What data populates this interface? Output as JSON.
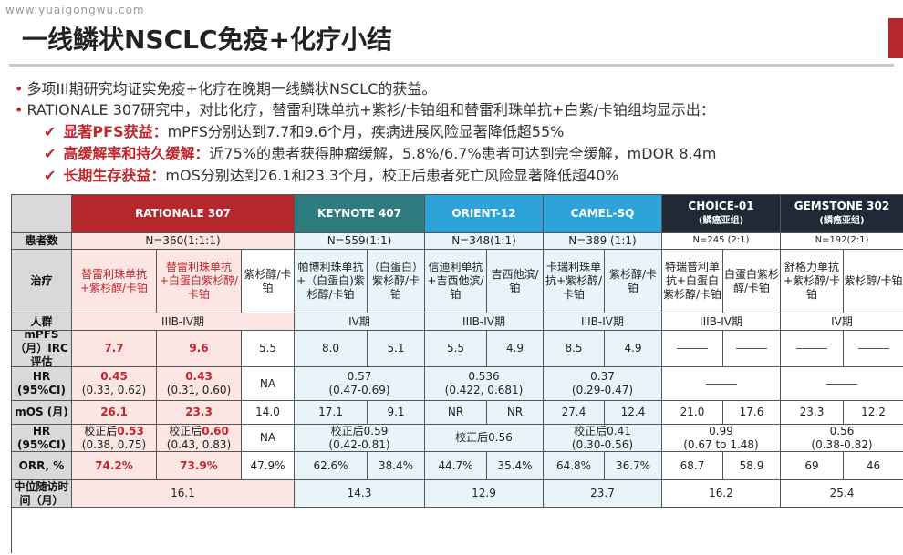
{
  "watermark": "www.yuaigongwu.com",
  "title": "一线鳞状NSCLC免疫+化疗小结",
  "bullets": [
    "多项III期研究均证实免疫+化疗在晚期一线鳞状NSCLC的获益。",
    "RATIONALE 307研究中，对比化疗，替雷利珠单抗+紫衫/卡铂组和替雷利珠单抗+白紫/卡铂组均显示出："
  ],
  "subpoints": [
    {
      "head": "显著PFS获益：",
      "text": "mPFS分别达到7.7和9.6个月，疾病进展风险显著降低超55%"
    },
    {
      "head": "高缓解率和持久缓解：",
      "text": "近75%的患者获得肿瘤缓解，5.8%/6.7%患者可达到完全缓解，mDOR 8.4m"
    },
    {
      "head": "长期生存获益：",
      "text": "mOS分别达到26.1和23.3个月，校正后患者死亡风险显著降低超40%"
    }
  ],
  "colors": {
    "red": "#b5272c",
    "teal": "#2e7b80",
    "light_blue": "#2ea3d9",
    "dark": "#1f2a36",
    "bg_light": "#e8f4fa",
    "bg_pink": "#fbe6e4"
  },
  "studies": [
    {
      "name": "RATIONALE 307",
      "sub": ""
    },
    {
      "name": "KEYNOTE 407",
      "sub": ""
    },
    {
      "name": "ORIENT-12",
      "sub": ""
    },
    {
      "name": "CAMEL-SQ",
      "sub": ""
    },
    {
      "name": "CHOICE-01",
      "sub": "(鳞癌亚组)"
    },
    {
      "name": "GEMSTONE 302",
      "sub": "(鳞癌亚组)"
    }
  ],
  "row_labels": [
    "患者数",
    "治疗",
    "人群",
    "mPFS（月）IRC评估",
    "HR (95%CI)",
    "mOS (月)",
    "HR (95%CI)",
    "ORR, %",
    "中位随访时间（月）"
  ],
  "patients": [
    "N=360(1:1:1)",
    "N=559(1:1)",
    "N=348(1:1)",
    "N=389 (1:1)",
    "N=245 (2:1)",
    "N=192(2:1)"
  ],
  "treatments": [
    "替雷利珠单抗+紫杉醇/卡铂",
    "替雷利珠单抗+白蛋白紫杉醇/卡铂",
    "紫杉醇/卡铂",
    "帕博利珠单抗+（白蛋白)紫杉醇/卡铂",
    "（白蛋白）紫杉醇/卡铂",
    "信迪利单抗+吉西他滨/铂",
    "吉西他滨/铂",
    "卡瑞利珠单抗+紫杉醇/卡铂",
    "紫杉醇/卡铂",
    "特瑞普利单抗+白蛋白紫杉醇/卡铂",
    "白蛋白紫杉醇/卡铂",
    "舒格力单抗+紫杉醇/卡铂",
    "紫杉醇/卡铂"
  ],
  "population": [
    "IIIB-IV期",
    "IV期",
    "IIIB-IV期",
    "IIIB-IV期",
    "IIIB-IV期",
    "IV期"
  ],
  "mpfs": [
    "7.7",
    "9.6",
    "5.5",
    "8.0",
    "5.1",
    "5.5",
    "4.9",
    "8.5",
    "4.9"
  ],
  "pfs_hr": [
    {
      "v": "0.45",
      "ci": "(0.33, 0.62)"
    },
    {
      "v": "0.43",
      "ci": "(0.31, 0.60)"
    },
    {
      "v": "NA",
      "ci": ""
    },
    {
      "v": "0.57",
      "ci": "(0.47-0.69)"
    },
    {
      "v": "0.536",
      "ci": "(0.422, 0.681)"
    },
    {
      "v": "0.37",
      "ci": "(0.29-0.47)"
    }
  ],
  "mos": [
    "26.1",
    "23.3",
    "14.0",
    "17.1",
    "9.1",
    "NR",
    "NR",
    "27.4",
    "12.4",
    "21.0",
    "17.6",
    "23.3",
    "12.2"
  ],
  "os_hr": [
    {
      "pre": "校正后",
      "v": "0.53",
      "ci": "(0.38, 0.75)"
    },
    {
      "pre": "校正后",
      "v": "0.60",
      "ci": "(0.43, 0.83)"
    },
    {
      "pre": "",
      "v": "NA",
      "ci": ""
    },
    {
      "pre": "校正后",
      "v": "0.59",
      "ci": "(0.42-0.81)"
    },
    {
      "pre": "校正后",
      "v": "0.56",
      "ci": ""
    },
    {
      "pre": "校正后",
      "v": "0.41",
      "ci": "(0.30-0.56)"
    },
    {
      "pre": "",
      "v": "0.99",
      "ci": "(0.67 to 1.48)"
    },
    {
      "pre": "",
      "v": "0.56",
      "ci": "(0.38-0.82)"
    }
  ],
  "orr": [
    "74.2%",
    "73.9%",
    "47.9%",
    "62.6%",
    "38.4%",
    "44.7%",
    "35.4%",
    "64.8%",
    "36.7%",
    "68.7",
    "58.9",
    "69",
    "46"
  ],
  "followup": [
    "16.1",
    "14.3",
    "12.9",
    "23.7",
    "16.2",
    "25.4"
  ]
}
